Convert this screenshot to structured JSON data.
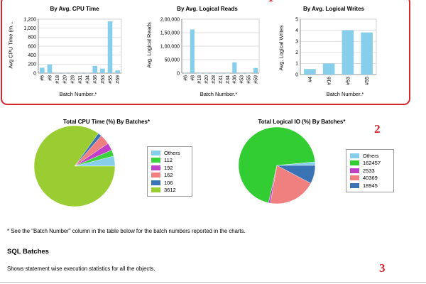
{
  "callouts": {
    "c1": "1",
    "c2": "2",
    "c3": "3"
  },
  "colors": {
    "bar": "#87ceeb",
    "callout_border": "#d6262e"
  },
  "chart_data": [
    {
      "type": "bar",
      "title": "By Avg. CPU Time",
      "ylabel": "Avg CPU Time (m...",
      "xlabel": "Batch Number.*",
      "ylim": [
        0,
        1200
      ],
      "yticks": [
        "0",
        "200",
        "400",
        "600",
        "800",
        "1,000",
        "1,200"
      ],
      "yticks_values": [
        0,
        200,
        400,
        600,
        800,
        1000,
        1200
      ],
      "categories": [
        "#6",
        "#8",
        "#18",
        "#20",
        "#28",
        "#31",
        "#34",
        "#36",
        "#53",
        "#55",
        "#59"
      ],
      "values": [
        120,
        190,
        5,
        5,
        5,
        5,
        5,
        160,
        100,
        1150,
        60
      ],
      "grid": true
    },
    {
      "type": "bar",
      "title": "By Avg. Logical Reads",
      "ylabel": "Avg. Logical Reads",
      "xlabel": "Batch Number.*",
      "ylim": [
        0,
        200000
      ],
      "yticks": [
        "0",
        "50,000",
        "1,00,000",
        "1,50,000",
        "2,00,000"
      ],
      "yticks_values": [
        0,
        50000,
        100000,
        150000,
        200000
      ],
      "categories": [
        "#6",
        "#8",
        "#18",
        "#20",
        "#28",
        "#31",
        "#34",
        "#36",
        "#53",
        "#55",
        "#59"
      ],
      "values": [
        800,
        162000,
        300,
        300,
        300,
        300,
        300,
        40000,
        300,
        300,
        19000
      ],
      "grid": true
    },
    {
      "type": "bar",
      "title": "By Avg. Logical Writes",
      "ylabel": "Avg. Logical Writes",
      "xlabel": "Batch Number.*",
      "ylim": [
        0,
        5
      ],
      "yticks": [
        "0",
        "1",
        "2",
        "3",
        "4",
        "5"
      ],
      "yticks_values": [
        0,
        1,
        2,
        3,
        4,
        5
      ],
      "categories": [
        "#4",
        "#16",
        "#53",
        "#55"
      ],
      "values": [
        0.5,
        1.0,
        4.0,
        3.8
      ],
      "grid": true
    },
    {
      "type": "pie",
      "title": "Total CPU Time (%) By Batches*",
      "labels": [
        "Others",
        "112",
        "192",
        "162",
        "106",
        "3612"
      ],
      "values": [
        4,
        2.5,
        3,
        4,
        1.5,
        85
      ],
      "colors": [
        "#87ceeb",
        "#3cd23c",
        "#c040c8",
        "#f08080",
        "#3a73b4",
        "#9acd32"
      ]
    },
    {
      "type": "pie",
      "title": "Total Logical IO (%) By Batches*",
      "labels": [
        "Others",
        "162457",
        "2533",
        "40369",
        "18945"
      ],
      "values": [
        1.5,
        70,
        0.8,
        20,
        7.7
      ],
      "colors": [
        "#87ceeb",
        "#32cd32",
        "#c040c8",
        "#f08080",
        "#3a73b4"
      ]
    }
  ],
  "footnote": "* See the \"Batch Number\" column in the table below for the batch numbers reported in the charts.",
  "sql_section": {
    "title": "SQL Batches",
    "description": "Shows statement wise execution statistics for all the objects."
  }
}
